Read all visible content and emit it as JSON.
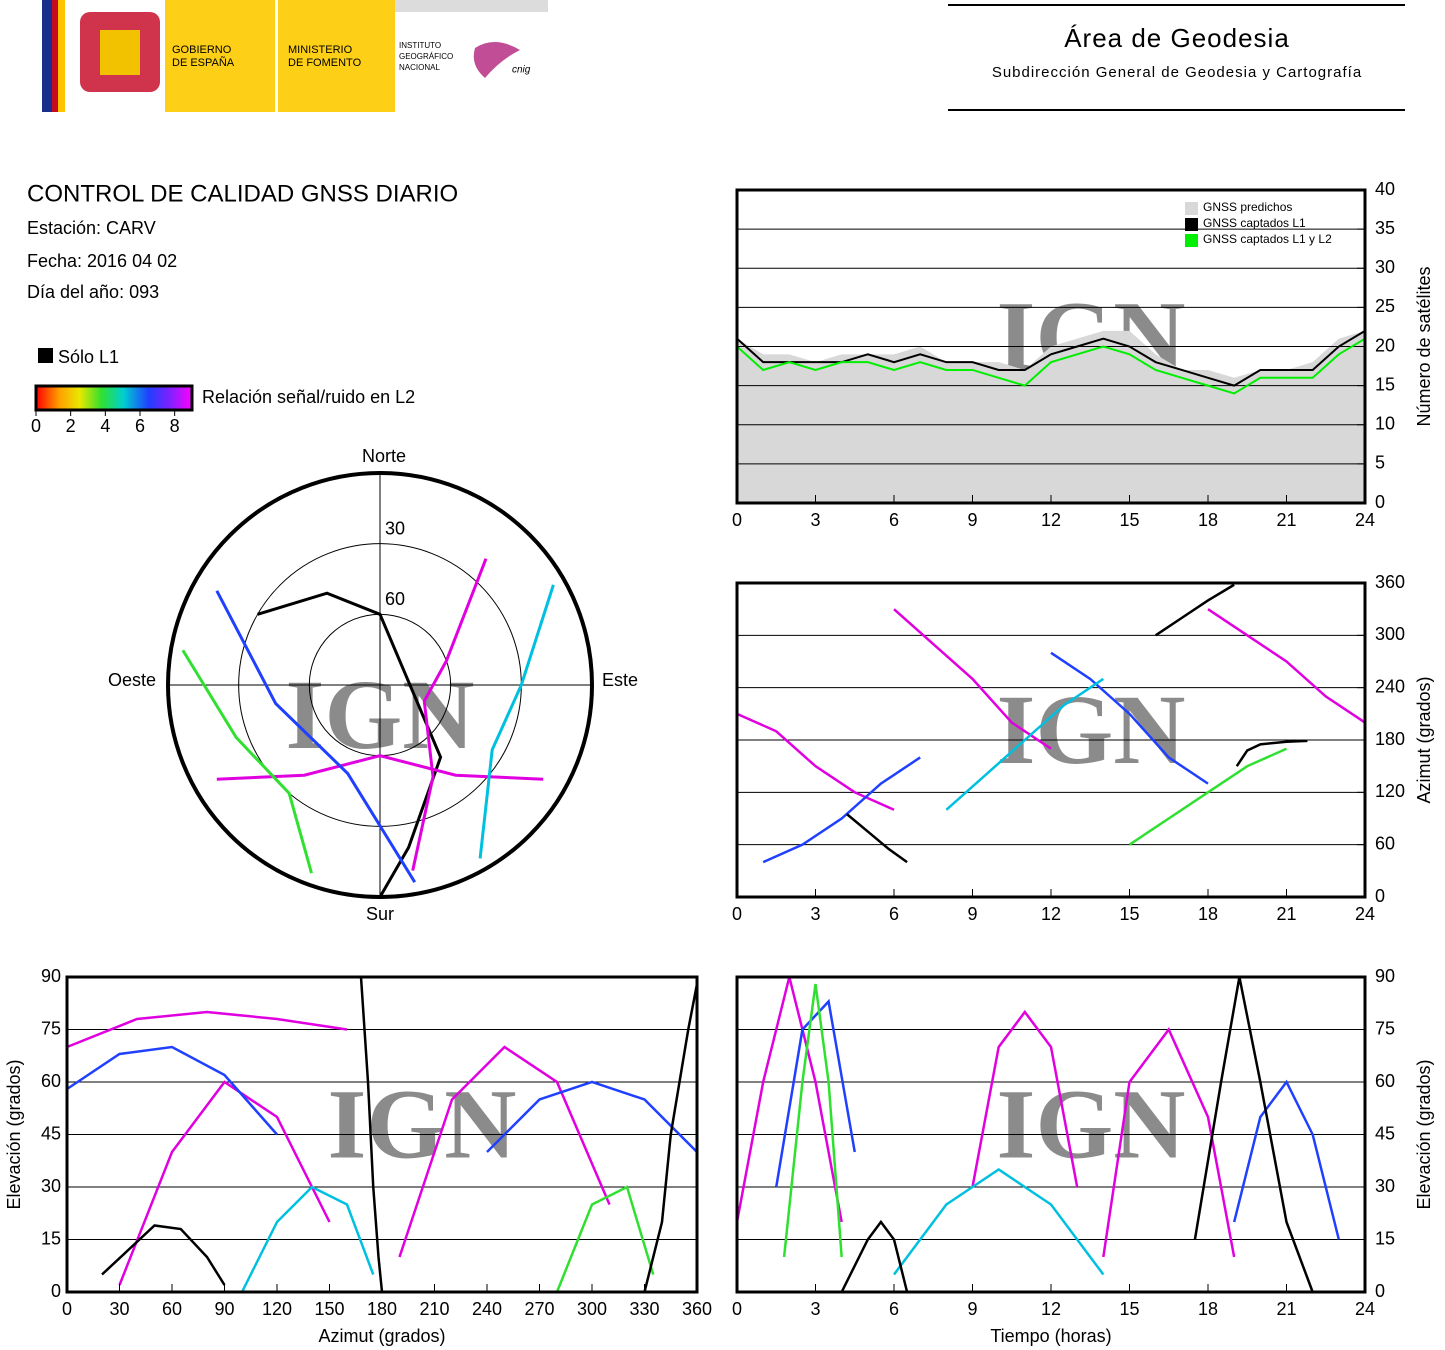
{
  "header": {
    "logos": [
      [
        "GOBIERNO",
        "DE ESPAÑA"
      ],
      [
        "MINISTERIO",
        "DE FOMENTO"
      ],
      [
        "INSTITUTO",
        "GEOGRÁFICO",
        "NACIONAL"
      ]
    ],
    "logo_mark": "cnig",
    "title": "Área de Geodesia",
    "subtitle": "Subdirección General de Geodesia y Cartografía"
  },
  "report": {
    "title": "CONTROL DE CALIDAD GNSS DIARIO",
    "station": "Estación: CARV",
    "date": "Fecha: 2016 04 02",
    "doy": "Día del año: 093"
  },
  "legend": {
    "l1_only": "Sólo L1",
    "colorbar_label": "Relación señal/ruido en L2",
    "colorbar_lim": [
      0,
      9
    ],
    "colorbar_ticks": [
      0,
      2,
      4,
      6,
      8
    ]
  },
  "watermark": "IGN",
  "chart_data": [
    {
      "type": "line",
      "x": [
        0,
        1,
        2,
        3,
        4,
        5,
        6,
        7,
        8,
        9,
        10,
        11,
        12,
        13,
        14,
        15,
        16,
        17,
        18,
        19,
        20,
        21,
        22,
        23,
        24
      ],
      "xlim": [
        0,
        24
      ],
      "xticks": [
        0,
        3,
        6,
        9,
        12,
        15,
        18,
        21,
        24
      ],
      "ylim": [
        0,
        40
      ],
      "yticks": [
        0,
        5,
        10,
        15,
        20,
        25,
        30,
        35,
        40
      ],
      "y_label": "Número de satélites",
      "y_axis_side": "right",
      "grid": true,
      "legend": "upper right",
      "series": [
        {
          "name": "GNSS predichos",
          "color": "#d8d8d8",
          "area": true,
          "values": [
            21,
            19,
            19,
            18,
            19,
            19,
            19,
            20,
            18,
            18,
            18,
            17,
            20,
            21,
            22,
            22,
            19,
            17,
            17,
            16,
            17,
            17,
            18,
            21,
            22
          ]
        },
        {
          "name": "GNSS captados L1",
          "color": "#000000",
          "values": [
            21,
            18,
            18,
            18,
            18,
            19,
            18,
            19,
            18,
            18,
            17,
            17,
            19,
            20,
            21,
            20,
            18,
            17,
            16,
            15,
            17,
            17,
            17,
            20,
            22
          ]
        },
        {
          "name": "GNSS captados L1 y L2",
          "color": "#00ee00",
          "values": [
            20,
            17,
            18,
            17,
            18,
            18,
            17,
            18,
            17,
            17,
            16,
            15,
            18,
            19,
            20,
            19,
            17,
            16,
            15,
            14,
            16,
            16,
            16,
            19,
            21
          ]
        }
      ]
    },
    {
      "type": "polar",
      "rlim": [
        90,
        0
      ],
      "rticks": [
        30,
        60
      ],
      "directions": {
        "north": "Norte",
        "south": "Sur",
        "east": "Este",
        "west": "Oeste"
      },
      "series": [
        {
          "color": "#000000",
          "x": [
            300,
            330,
            0,
            140,
            170,
            180
          ],
          "values": [
            30,
            45,
            60,
            50,
            20,
            0
          ]
        },
        {
          "color": "#e000e0",
          "x": [
            240,
            220,
            180,
            140,
            120
          ],
          "values": [
            10,
            40,
            60,
            40,
            10
          ]
        },
        {
          "color": "#e000e0",
          "x": [
            40,
            70,
            110,
            150,
            170
          ],
          "values": [
            20,
            60,
            70,
            45,
            10
          ]
        },
        {
          "color": "#2040ff",
          "x": [
            300,
            260,
            200,
            170
          ],
          "values": [
            10,
            45,
            50,
            5
          ]
        },
        {
          "color": "#00c0e0",
          "x": [
            60,
            90,
            120,
            150
          ],
          "values": [
            5,
            30,
            35,
            5
          ]
        },
        {
          "color": "#30e030",
          "x": [
            280,
            250,
            220,
            200
          ],
          "values": [
            5,
            25,
            30,
            5
          ]
        }
      ]
    },
    {
      "type": "line",
      "xlim": [
        0,
        24
      ],
      "xticks": [
        0,
        3,
        6,
        9,
        12,
        15,
        18,
        21,
        24
      ],
      "ylim": [
        0,
        360
      ],
      "yticks": [
        0,
        60,
        120,
        180,
        240,
        300,
        360
      ],
      "y_label": "Azimut (grados)",
      "y_axis_side": "right",
      "grid": true,
      "series": [
        {
          "color": "#e000e0",
          "x": [
            0,
            1.5,
            3,
            4.5,
            6
          ],
          "values": [
            210,
            190,
            150,
            120,
            100
          ]
        },
        {
          "color": "#e000e0",
          "x": [
            6,
            7.5,
            9,
            10.5,
            12
          ],
          "values": [
            330,
            290,
            250,
            200,
            170
          ]
        },
        {
          "color": "#2040ff",
          "x": [
            1,
            2.5,
            4,
            5.5,
            7
          ],
          "values": [
            40,
            60,
            90,
            130,
            160
          ]
        },
        {
          "color": "#2040ff",
          "x": [
            12,
            13.5,
            15,
            16.5,
            18
          ],
          "values": [
            280,
            250,
            210,
            160,
            130
          ]
        },
        {
          "color": "#00c0e0",
          "x": [
            8,
            9.5,
            11,
            12.5,
            14
          ],
          "values": [
            100,
            140,
            180,
            220,
            250
          ]
        },
        {
          "color": "#30e030",
          "x": [
            15,
            16.5,
            18,
            19.5,
            21
          ],
          "values": [
            60,
            90,
            120,
            150,
            170
          ]
        },
        {
          "color": "#e000e0",
          "x": [
            18,
            19.5,
            21,
            22.5,
            24
          ],
          "values": [
            330,
            300,
            270,
            230,
            200
          ]
        },
        {
          "color": "#000000",
          "x": [
            19.1,
            19.5,
            20,
            21,
            21.8
          ],
          "values": [
            150,
            168,
            175,
            178,
            179
          ]
        },
        {
          "color": "#000000",
          "x": [
            4.2,
            5,
            5.8,
            6.5
          ],
          "values": [
            95,
            75,
            55,
            40
          ]
        },
        {
          "color": "#000000",
          "x": [
            16,
            17,
            18,
            19
          ],
          "values": [
            300,
            320,
            340,
            358
          ]
        }
      ]
    },
    {
      "type": "line",
      "xlim": [
        0,
        360
      ],
      "xticks": [
        0,
        30,
        60,
        90,
        120,
        150,
        180,
        210,
        240,
        270,
        300,
        330,
        360
      ],
      "ylim": [
        0,
        90
      ],
      "yticks": [
        0,
        15,
        30,
        45,
        60,
        75,
        90
      ],
      "x_label": "Azimut (grados)",
      "y_label": "Elevación (grados)",
      "y_axis_side": "left",
      "grid": true,
      "series": [
        {
          "color": "#e000e0",
          "x": [
            30,
            60,
            90,
            120,
            150
          ],
          "values": [
            2,
            40,
            60,
            50,
            20
          ]
        },
        {
          "color": "#e000e0",
          "x": [
            190,
            220,
            250,
            280,
            310
          ],
          "values": [
            10,
            55,
            70,
            60,
            25
          ]
        },
        {
          "color": "#e000e0",
          "x": [
            0,
            40,
            80,
            120,
            160
          ],
          "values": [
            70,
            78,
            80,
            78,
            75
          ]
        },
        {
          "color": "#2040ff",
          "x": [
            0,
            30,
            60,
            90,
            120
          ],
          "values": [
            58,
            68,
            70,
            62,
            45
          ]
        },
        {
          "color": "#2040ff",
          "x": [
            240,
            270,
            300,
            330,
            360
          ],
          "values": [
            40,
            55,
            60,
            55,
            40
          ]
        },
        {
          "color": "#00c0e0",
          "x": [
            100,
            120,
            140,
            160,
            175
          ],
          "values": [
            0,
            20,
            30,
            25,
            5
          ]
        },
        {
          "color": "#30e030",
          "x": [
            280,
            300,
            320,
            335
          ],
          "values": [
            0,
            25,
            30,
            5
          ]
        },
        {
          "color": "#000000",
          "x": [
            168,
            172,
            175,
            178,
            180
          ],
          "values": [
            90,
            60,
            30,
            10,
            0
          ]
        },
        {
          "color": "#000000",
          "x": [
            20,
            35,
            50,
            65,
            80,
            90
          ],
          "values": [
            5,
            12,
            19,
            18,
            10,
            2
          ]
        },
        {
          "color": "#000000",
          "x": [
            330,
            340,
            345,
            355,
            360
          ],
          "values": [
            0,
            20,
            45,
            75,
            88
          ]
        }
      ]
    },
    {
      "type": "line",
      "xlim": [
        0,
        24
      ],
      "xticks": [
        0,
        3,
        6,
        9,
        12,
        15,
        18,
        21,
        24
      ],
      "ylim": [
        0,
        90
      ],
      "yticks": [
        0,
        15,
        30,
        45,
        60,
        75,
        90
      ],
      "x_label": "Tiempo (horas)",
      "y_label": "Elevación (grados)",
      "y_axis_side": "right",
      "grid": true,
      "series": [
        {
          "color": "#e000e0",
          "x": [
            0,
            1,
            2,
            3,
            4
          ],
          "values": [
            20,
            60,
            90,
            60,
            20
          ]
        },
        {
          "color": "#e000e0",
          "x": [
            9,
            10,
            11,
            12,
            13
          ],
          "values": [
            30,
            70,
            80,
            70,
            30
          ]
        },
        {
          "color": "#e000e0",
          "x": [
            14,
            15,
            16.5,
            18,
            19
          ],
          "values": [
            10,
            60,
            75,
            50,
            10
          ]
        },
        {
          "color": "#2040ff",
          "x": [
            1.5,
            2.5,
            3.5,
            4.5
          ],
          "values": [
            30,
            75,
            83,
            40
          ]
        },
        {
          "color": "#2040ff",
          "x": [
            19,
            20,
            21,
            22,
            23
          ],
          "values": [
            20,
            50,
            60,
            45,
            15
          ]
        },
        {
          "color": "#30e030",
          "x": [
            1.8,
            2.5,
            3,
            3.5,
            4
          ],
          "values": [
            10,
            60,
            88,
            60,
            10
          ]
        },
        {
          "color": "#00c0e0",
          "x": [
            6,
            8,
            10,
            12,
            14
          ],
          "values": [
            5,
            25,
            35,
            25,
            5
          ]
        },
        {
          "color": "#000000",
          "x": [
            17.5,
            18.5,
            19.2,
            20,
            21,
            22
          ],
          "values": [
            15,
            60,
            90,
            60,
            20,
            0
          ]
        },
        {
          "color": "#000000",
          "x": [
            4,
            5,
            5.5,
            6,
            6.5
          ],
          "values": [
            0,
            15,
            20,
            15,
            0
          ]
        }
      ]
    }
  ]
}
